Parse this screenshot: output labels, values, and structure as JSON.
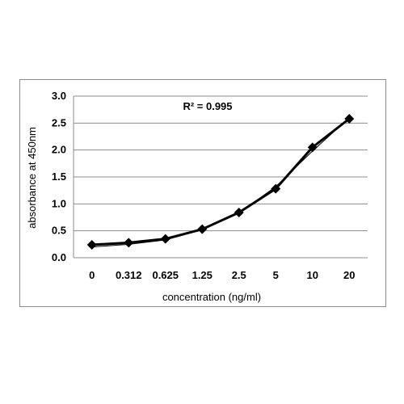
{
  "chart_data": {
    "type": "line",
    "title": "",
    "xlabel": "concentration (ng/ml)",
    "ylabel": "absorbance at 450nm",
    "categories": [
      "0",
      "0.312",
      "0.625",
      "1.25",
      "2.5",
      "5",
      "10",
      "20"
    ],
    "series": [
      {
        "values": [
          0.24,
          0.28,
          0.35,
          0.53,
          0.84,
          1.28,
          2.05,
          2.58
        ],
        "color": "#000000",
        "marker": "diamond"
      }
    ],
    "trendline": {
      "values": [
        0.2,
        0.25,
        0.33,
        0.52,
        0.83,
        1.32,
        1.98,
        2.6
      ]
    },
    "ylim": [
      0,
      3.0
    ],
    "yticks": [
      "0.0",
      "0.5",
      "1.0",
      "1.5",
      "2.0",
      "2.5",
      "3.0"
    ],
    "grid": true,
    "legend": "none",
    "annotation": "R² = 0.995"
  }
}
